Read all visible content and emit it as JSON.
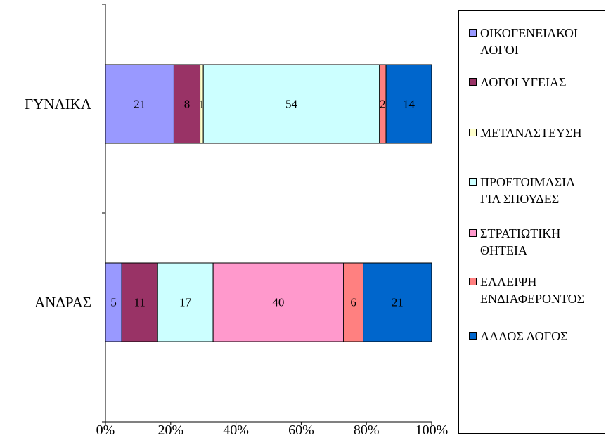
{
  "chart_data": {
    "type": "bar",
    "orientation": "horizontal",
    "stacked": "percent",
    "categories": [
      "ΓΥΝΑΙΚΑ",
      "ΑΝΔΡΑΣ"
    ],
    "series": [
      {
        "name": "ΟΙΚΟΓΕΝΕΙΑΚΟΙ ΛΟΓΟΙ",
        "color": "#9999ff",
        "values": [
          21,
          5
        ]
      },
      {
        "name": "ΛΟΓΟΙ ΥΓΕΙΑΣ",
        "color": "#993366",
        "values": [
          8,
          11
        ]
      },
      {
        "name": "ΜΕΤΑΝΑΣΤΕΥΣΗ",
        "color": "#ffffcc",
        "values": [
          1,
          0
        ]
      },
      {
        "name": "ΠΡΟΕΤΟΙΜΑΣΙΑ ΓΙΑ ΣΠΟΥΔΕΣ",
        "color": "#ccffff",
        "values": [
          54,
          17
        ]
      },
      {
        "name": "ΣΤΡΑΤΙΩΤΙΚΗ ΘΗΤΕΙΑ",
        "color": "#ff99cc",
        "values": [
          0,
          40
        ]
      },
      {
        "name": "ΕΛΛΕΙΨΗ ΕΝΔΙΑΦΕΡΟΝΤΟΣ",
        "color": "#ff8080",
        "values": [
          2,
          6
        ]
      },
      {
        "name": "ΑΛΛΟΣ ΛΟΓΟΣ",
        "color": "#0066cc",
        "values": [
          14,
          21
        ]
      }
    ],
    "x_ticks": [
      "0%",
      "20%",
      "40%",
      "60%",
      "80%",
      "100%"
    ],
    "xlim": [
      0,
      100
    ],
    "grid": false,
    "legend_position": "right"
  },
  "legend": {
    "items": [
      {
        "lines": [
          "ΟΙΚΟΓΕΝΕΙΑΚΟΙ",
          "ΛΟΓΟΙ"
        ],
        "color": "#9999ff"
      },
      {
        "lines": [
          "ΛΟΓΟΙ ΥΓΕΙΑΣ"
        ],
        "color": "#993366"
      },
      {
        "lines": [
          "ΜΕΤΑΝΑΣΤΕΥΣΗ"
        ],
        "color": "#ffffcc"
      },
      {
        "lines": [
          "ΠΡΟΕΤΟΙΜΑΣΙΑ",
          "ΓΙΑ ΣΠΟΥΔΕΣ"
        ],
        "color": "#ccffff"
      },
      {
        "lines": [
          "ΣΤΡΑΤΙΩΤΙΚΗ",
          "ΘΗΤΕΙΑ"
        ],
        "color": "#ff99cc"
      },
      {
        "lines": [
          "ΕΛΛΕΙΨΗ",
          "ΕΝΔΙΑΦΕΡΟΝΤΟΣ"
        ],
        "color": "#ff8080"
      },
      {
        "lines": [
          "ΑΛΛΟΣ ΛΟΓΟΣ"
        ],
        "color": "#0066cc"
      }
    ]
  }
}
